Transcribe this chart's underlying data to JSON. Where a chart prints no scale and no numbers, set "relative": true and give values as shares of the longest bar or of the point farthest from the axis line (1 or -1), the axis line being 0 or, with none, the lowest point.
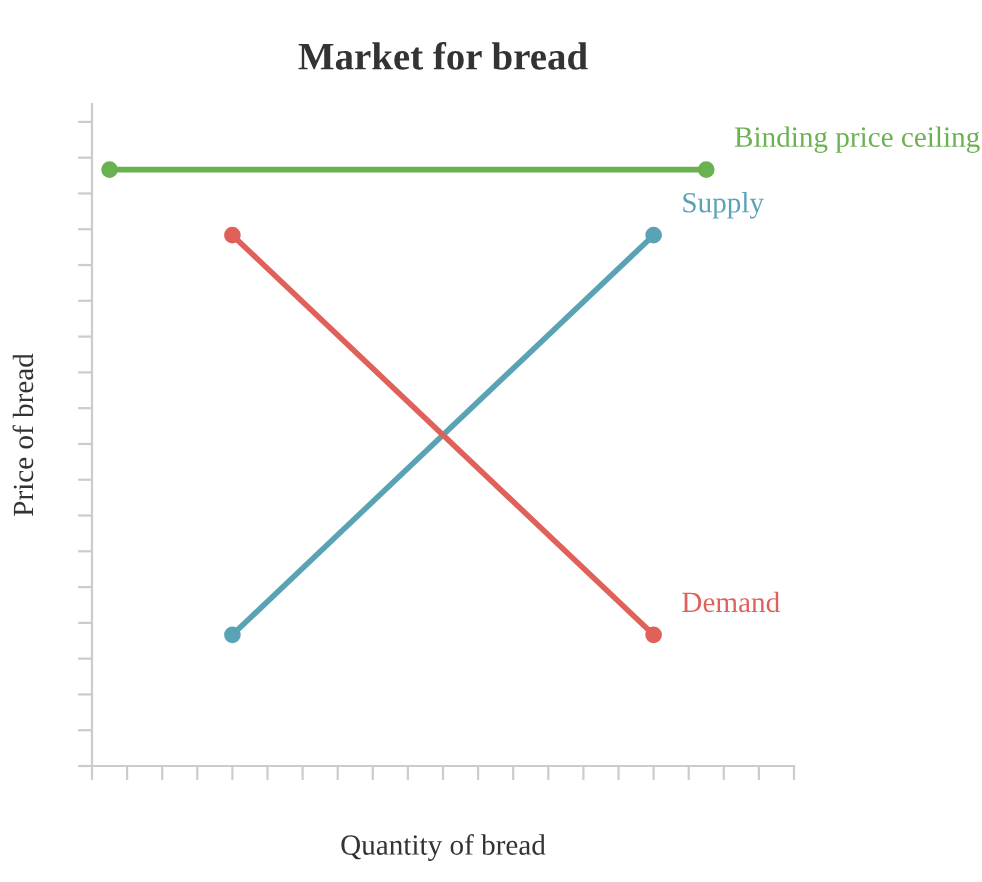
{
  "chart_data": {
    "type": "line",
    "title": "Market for bread",
    "xlabel": "Quantity of bread",
    "ylabel": "Price of bread",
    "relative": true,
    "marker": "circle",
    "line_style": "solid",
    "grid": false,
    "categories": [
      null,
      null,
      null,
      null,
      null,
      null,
      null,
      null,
      null,
      null,
      null,
      null,
      null,
      null,
      null,
      null,
      null,
      null,
      null,
      null,
      null,
      null,
      null,
      null,
      null,
      null,
      null,
      null,
      null,
      null,
      null,
      null,
      null,
      null,
      null,
      null,
      null,
      null,
      null,
      null,
      null
    ],
    "series": [
      {
        "name": "Binding price ceiling",
        "color": "#6ab150",
        "values": [
          null,
          1,
          null,
          null,
          null,
          null,
          null,
          null,
          null,
          null,
          null,
          null,
          null,
          null,
          null,
          null,
          null,
          null,
          null,
          null,
          null,
          null,
          null,
          null,
          null,
          null,
          null,
          null,
          null,
          null,
          null,
          null,
          null,
          null,
          null,
          1,
          null,
          null,
          null,
          null,
          null
        ]
      },
      {
        "name": "Supply",
        "color": "#5aa3b5",
        "values": [
          null,
          null,
          null,
          null,
          null,
          null,
          null,
          null,
          0.22,
          null,
          null,
          null,
          null,
          null,
          null,
          null,
          null,
          null,
          null,
          null,
          null,
          null,
          null,
          null,
          null,
          null,
          null,
          null,
          null,
          null,
          null,
          null,
          0.89,
          null,
          null,
          null,
          null,
          null,
          null,
          null,
          null
        ]
      },
      {
        "name": "Demand",
        "color": "#e0605a",
        "values": [
          null,
          null,
          null,
          null,
          null,
          null,
          null,
          null,
          0.89,
          null,
          null,
          null,
          null,
          null,
          null,
          null,
          null,
          null,
          null,
          null,
          null,
          null,
          null,
          null,
          null,
          null,
          null,
          null,
          null,
          null,
          null,
          null,
          0.22,
          null,
          null,
          null,
          null,
          null,
          null,
          null,
          null
        ]
      }
    ]
  }
}
